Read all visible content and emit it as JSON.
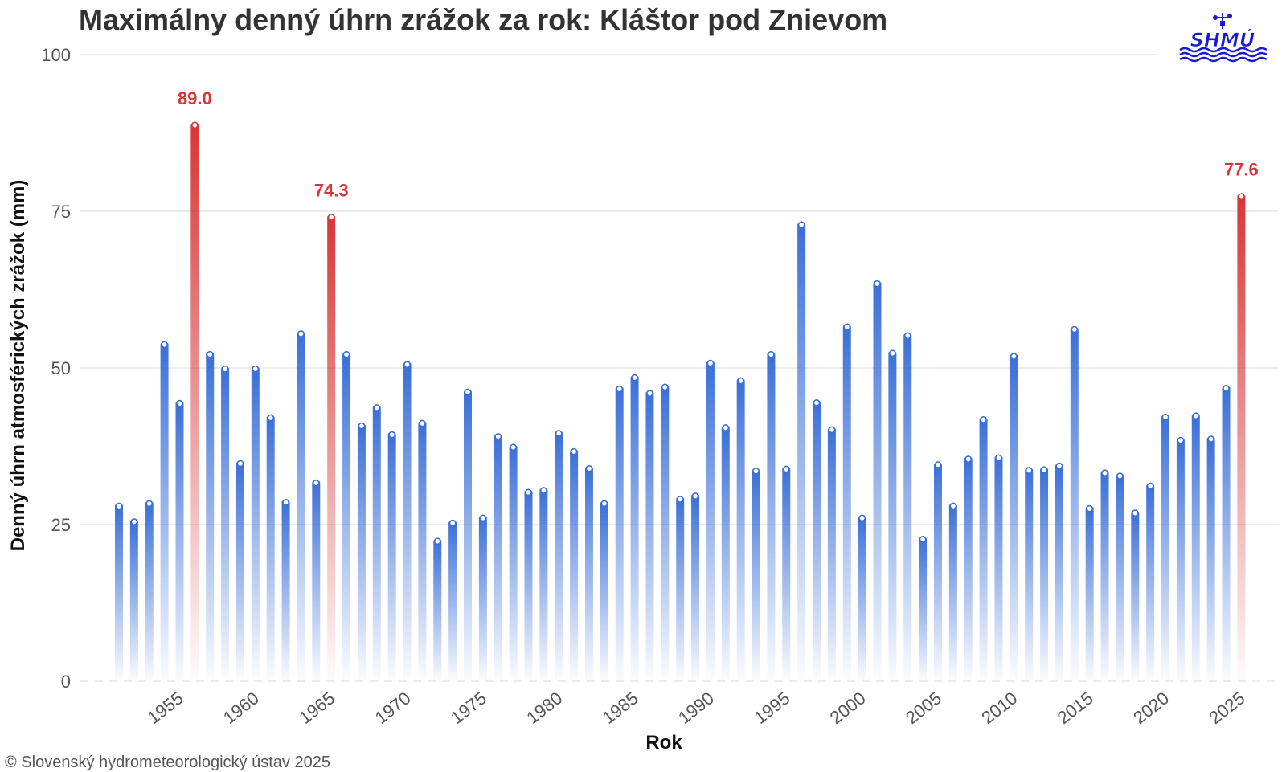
{
  "copyright": "© Slovenský hydrometeorologický ústav 2025",
  "logo": {
    "text": "SHMÚ",
    "color": "#1a1ad6"
  },
  "colors": {
    "bar": "#3a6fd8",
    "highlight": "#d93535",
    "grid": "#e6e6e6",
    "text": "#555555"
  },
  "chart_data": {
    "type": "bar",
    "title": "Maximálny denný úhrn zrážok za rok: Kláštor pod Znievom",
    "xlabel": "Rok",
    "ylabel": "Denný úhrn atmosférických zrážok (mm)",
    "ylim": [
      0,
      100
    ],
    "yticks": [
      0,
      25,
      50,
      75,
      100
    ],
    "xticks": [
      1955,
      1960,
      1965,
      1970,
      1975,
      1980,
      1985,
      1990,
      1995,
      2000,
      2005,
      2010,
      2015,
      2020,
      2025
    ],
    "grid": true,
    "x": [
      1951,
      1952,
      1953,
      1954,
      1955,
      1956,
      1957,
      1958,
      1959,
      1960,
      1961,
      1962,
      1963,
      1964,
      1965,
      1966,
      1967,
      1968,
      1969,
      1970,
      1971,
      1972,
      1973,
      1974,
      1975,
      1976,
      1977,
      1978,
      1979,
      1980,
      1981,
      1982,
      1983,
      1984,
      1985,
      1986,
      1987,
      1988,
      1989,
      1990,
      1991,
      1992,
      1993,
      1994,
      1995,
      1996,
      1997,
      1998,
      1999,
      2000,
      2001,
      2002,
      2003,
      2004,
      2005,
      2006,
      2007,
      2008,
      2009,
      2010,
      2011,
      2012,
      2013,
      2014,
      2015,
      2016,
      2017,
      2018,
      2019,
      2020,
      2021,
      2022,
      2023,
      2024,
      2025
    ],
    "values": [
      28.2,
      25.7,
      28.6,
      54.0,
      44.6,
      89.0,
      52.4,
      50.1,
      35.0,
      50.1,
      42.3,
      28.8,
      55.7,
      31.9,
      74.3,
      52.4,
      41.0,
      43.9,
      39.6,
      50.8,
      41.4,
      22.6,
      25.5,
      46.4,
      26.3,
      39.3,
      37.6,
      30.4,
      30.7,
      39.8,
      36.9,
      34.2,
      28.6,
      46.9,
      48.7,
      46.2,
      47.2,
      29.3,
      29.8,
      51.0,
      40.7,
      48.2,
      33.8,
      52.4,
      34.1,
      73.1,
      44.7,
      40.4,
      56.8,
      26.3,
      63.7,
      52.6,
      55.4,
      22.9,
      34.8,
      28.2,
      35.7,
      42.0,
      35.9,
      52.1,
      33.9,
      34.0,
      34.6,
      56.4,
      27.8,
      33.5,
      33.0,
      27.1,
      31.4,
      42.4,
      38.7,
      42.6,
      38.9,
      47.0,
      77.6
    ],
    "highlighted": [
      {
        "x": 1956,
        "value": 89.0,
        "label": "89.0"
      },
      {
        "x": 1965,
        "value": 74.3,
        "label": "74.3"
      },
      {
        "x": 2025,
        "value": 77.6,
        "label": "77.6"
      }
    ]
  }
}
